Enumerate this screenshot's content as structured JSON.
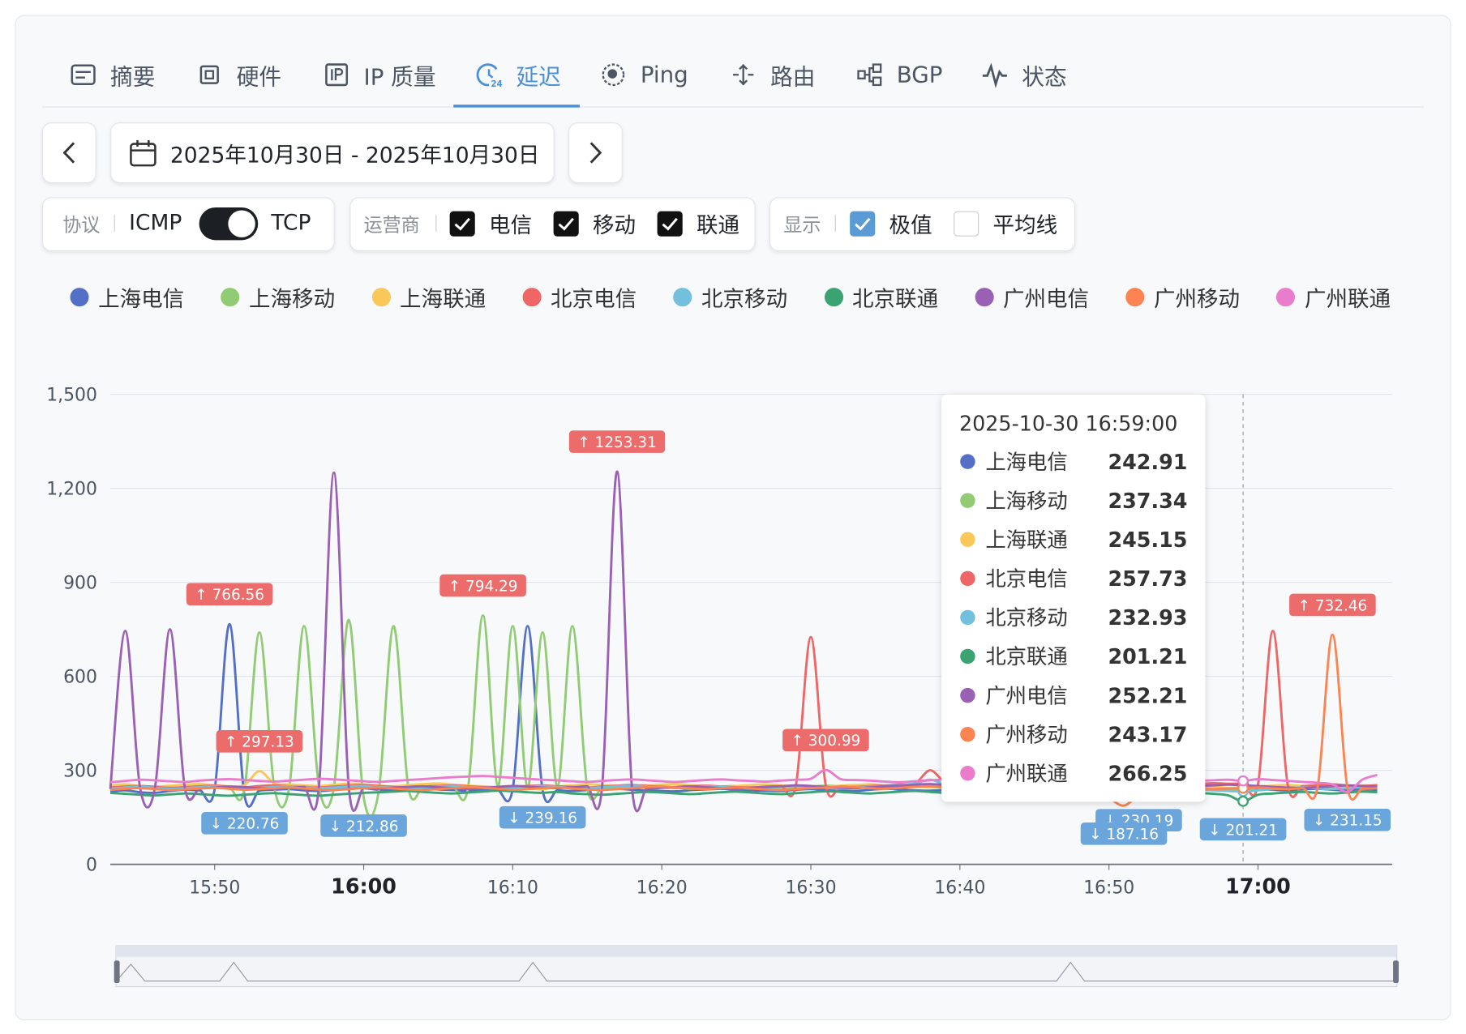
{
  "tabs": [
    {
      "label": "摘要",
      "active": false
    },
    {
      "label": "硬件",
      "active": false
    },
    {
      "label": "IP 质量",
      "active": false
    },
    {
      "label": "延迟",
      "active": true
    },
    {
      "label": "Ping",
      "active": false
    },
    {
      "label": "路由",
      "active": false
    },
    {
      "label": "BGP",
      "active": false
    },
    {
      "label": "状态",
      "active": false
    }
  ],
  "date_range": "2025年10月30日 - 2025年10月30日",
  "filters": {
    "protocol": {
      "label": "协议",
      "options": [
        "ICMP",
        "TCP"
      ],
      "toggle_on": true
    },
    "carrier": {
      "label": "运营商",
      "options": [
        {
          "label": "电信",
          "checked": true
        },
        {
          "label": "移动",
          "checked": true
        },
        {
          "label": "联通",
          "checked": true
        }
      ]
    },
    "display": {
      "label": "显示",
      "options": [
        {
          "label": "极值",
          "checked": true
        },
        {
          "label": "平均线",
          "checked": false
        }
      ]
    }
  },
  "chart_data": {
    "type": "line",
    "smooth": true,
    "x": [
      "15:43",
      "15:44",
      "15:45",
      "15:46",
      "15:47",
      "15:48",
      "15:49",
      "15:50",
      "15:51",
      "15:52",
      "15:53",
      "15:54",
      "15:55",
      "15:56",
      "15:57",
      "15:58",
      "15:59",
      "16:00",
      "16:01",
      "16:02",
      "16:03",
      "16:04",
      "16:05",
      "16:06",
      "16:07",
      "16:08",
      "16:09",
      "16:10",
      "16:11",
      "16:12",
      "16:13",
      "16:14",
      "16:15",
      "16:16",
      "16:17",
      "16:18",
      "16:19",
      "16:20",
      "16:21",
      "16:22",
      "16:23",
      "16:24",
      "16:25",
      "16:26",
      "16:27",
      "16:28",
      "16:29",
      "16:30",
      "16:31",
      "16:32",
      "16:33",
      "16:34",
      "16:35",
      "16:36",
      "16:37",
      "16:38",
      "16:39",
      "16:40",
      "16:41",
      "16:42",
      "16:43",
      "16:44",
      "16:45",
      "16:46",
      "16:47",
      "16:48",
      "16:49",
      "16:50",
      "16:51",
      "16:52",
      "16:53",
      "16:54",
      "16:55",
      "16:56",
      "16:57",
      "16:58",
      "16:59",
      "17:00",
      "17:01",
      "17:02",
      "17:03",
      "17:04",
      "17:05",
      "17:06",
      "17:07",
      "17:08"
    ],
    "xlim": [
      "15:43",
      "17:09"
    ],
    "xticks": [
      "15:50",
      "16:00",
      "16:10",
      "16:20",
      "16:30",
      "16:40",
      "16:50",
      "17:00"
    ],
    "ylim": [
      0,
      1500
    ],
    "yticks": [
      0,
      300,
      600,
      900,
      {
        "value": 1200,
        "label": "1,200"
      },
      {
        "value": 1500,
        "label": "1,500"
      }
    ],
    "grid": true,
    "series": [
      {
        "name": "上海电信",
        "color": "#5470c6",
        "max_label": "↑ 766.56",
        "min_label": "↓ 220.76",
        "values": [
          232,
          236,
          230,
          228,
          234,
          238,
          236,
          240,
          766.56,
          220.76,
          235,
          238,
          240,
          236,
          234,
          237,
          241,
          243,
          238,
          236,
          240,
          242,
          239,
          237,
          235,
          238,
          236,
          241,
          760,
          238,
          236,
          234,
          237,
          239,
          241,
          238,
          236,
          234,
          233,
          237,
          239,
          241,
          238,
          236,
          235,
          234,
          238,
          240,
          237,
          236,
          234,
          238,
          241,
          239,
          236,
          235,
          237,
          240,
          242,
          238,
          236,
          235,
          238,
          241,
          243,
          240,
          237,
          236,
          235,
          239,
          241,
          238,
          236,
          237,
          240,
          242,
          242.91,
          240,
          238,
          236,
          239,
          241,
          238,
          236,
          240,
          237
        ]
      },
      {
        "name": "上海移动",
        "color": "#91cc75",
        "max_label": "↑ 794.29",
        "min_label": "↓ 212.86",
        "values": [
          248,
          245,
          250,
          246,
          243,
          247,
          249,
          252,
          245,
          241,
          740,
          246,
          244,
          760,
          248,
          245,
          780,
          212.86,
          230,
          760,
          244,
          248,
          251,
          247,
          245,
          794.29,
          250,
          760,
          246,
          740,
          248,
          760,
          245,
          243,
          247,
          250,
          252,
          246,
          244,
          241,
          245,
          248,
          250,
          247,
          243,
          240,
          244,
          248,
          251,
          249,
          246,
          243,
          245,
          248,
          250,
          247,
          244,
          240,
          238,
          236,
          240,
          243,
          246,
          248,
          245,
          242,
          240,
          238,
          236,
          239,
          242,
          244,
          246,
          240,
          238,
          236,
          237.34,
          240,
          243,
          245,
          247,
          244,
          242,
          245,
          248,
          246
        ]
      },
      {
        "name": "上海联通",
        "color": "#fac858",
        "max_label": "↑ 297.13",
        "min_label": "↓ 239.16",
        "values": [
          252,
          255,
          250,
          248,
          251,
          254,
          256,
          252,
          249,
          253,
          297.13,
          258,
          255,
          252,
          250,
          254,
          257,
          255,
          251,
          249,
          253,
          256,
          258,
          254,
          251,
          249,
          247,
          250,
          245,
          239.16,
          248,
          252,
          255,
          253,
          250,
          248,
          251,
          254,
          256,
          252,
          249,
          247,
          250,
          253,
          255,
          252,
          249,
          247,
          248,
          251,
          253,
          255,
          252,
          250,
          248,
          246,
          249,
          252,
          254,
          251,
          248,
          246,
          248,
          251,
          253,
          250,
          247,
          245,
          248,
          250,
          252,
          249,
          247,
          246,
          248,
          244,
          245.15,
          248,
          251,
          253,
          250,
          248,
          247,
          250,
          252,
          249
        ]
      },
      {
        "name": "北京电信",
        "color": "#ee6666",
        "values": [
          245,
          248,
          250,
          247,
          244,
          246,
          249,
          251,
          248,
          246,
          250,
          252,
          249,
          247,
          245,
          248,
          251,
          253,
          250,
          247,
          245,
          248,
          250,
          252,
          249,
          246,
          244,
          247,
          250,
          252,
          249,
          247,
          245,
          248,
          251,
          253,
          250,
          248,
          246,
          249,
          251,
          248,
          246,
          245,
          248,
          250,
          253,
          725,
          252,
          249,
          247,
          250,
          252,
          255,
          258,
          300,
          262,
          259,
          256,
          258,
          255,
          252,
          250,
          253,
          256,
          254,
          251,
          249,
          252,
          255,
          258,
          255,
          253,
          256,
          259,
          257,
          257.73,
          255,
          745,
          252,
          250,
          253,
          255,
          252,
          250,
          253
        ]
      },
      {
        "name": "北京移动",
        "color": "#73c0de",
        "min_label": "↓ 230.19",
        "values": [
          242,
          245,
          248,
          244,
          241,
          243,
          246,
          249,
          245,
          242,
          244,
          247,
          249,
          246,
          243,
          245,
          248,
          250,
          247,
          244,
          242,
          245,
          248,
          250,
          247,
          244,
          242,
          245,
          248,
          250,
          247,
          244,
          243,
          246,
          249,
          251,
          248,
          245,
          243,
          246,
          249,
          247,
          244,
          242,
          245,
          248,
          250,
          247,
          244,
          242,
          245,
          248,
          250,
          253,
          258,
          270,
          255,
          250,
          247,
          245,
          248,
          250,
          247,
          244,
          242,
          240,
          238,
          236,
          234,
          230.19,
          236,
          239,
          241,
          238,
          236,
          234,
          232.93,
          236,
          240,
          243,
          245,
          242,
          240,
          243,
          246,
          244
        ]
      },
      {
        "name": "北京联通",
        "color": "#3ba272",
        "min_label": "↓ 201.21",
        "values": [
          228,
          225,
          222,
          220,
          223,
          226,
          224,
          221,
          219,
          222,
          225,
          227,
          224,
          221,
          219,
          222,
          225,
          228,
          230,
          232,
          234,
          231,
          228,
          226,
          229,
          232,
          235,
          233,
          230,
          228,
          231,
          226,
          224,
          222,
          225,
          228,
          231,
          229,
          226,
          224,
          227,
          230,
          232,
          229,
          226,
          224,
          227,
          230,
          233,
          231,
          228,
          226,
          229,
          232,
          234,
          231,
          228,
          226,
          224,
          227,
          230,
          232,
          229,
          227,
          225,
          228,
          231,
          233,
          230,
          228,
          226,
          229,
          231,
          228,
          225,
          220,
          201.21,
          222,
          226,
          229,
          231,
          228,
          226,
          229,
          232,
          230
        ]
      },
      {
        "name": "广州电信",
        "color": "#9a60b4",
        "max_label": "↑ 1253.31",
        "values": [
          240,
          745,
          243,
          246,
          750,
          244,
          242,
          245,
          248,
          246,
          243,
          241,
          244,
          247,
          249,
          1250,
          246,
          243,
          241,
          244,
          247,
          249,
          246,
          243,
          241,
          244,
          247,
          250,
          248,
          245,
          243,
          246,
          249,
          251,
          1253.31,
          245,
          242,
          244,
          247,
          249,
          246,
          243,
          241,
          244,
          247,
          249,
          252,
          250,
          247,
          245,
          243,
          246,
          249,
          251,
          254,
          256,
          253,
          250,
          248,
          246,
          249,
          252,
          250,
          247,
          245,
          243,
          246,
          249,
          251,
          248,
          246,
          244,
          247,
          250,
          252,
          254,
          252.21,
          250,
          247,
          245,
          243,
          246,
          249,
          252,
          250,
          248
        ]
      },
      {
        "name": "广州移动",
        "color": "#fc8452",
        "max_label": "↑ 732.46",
        "min_label": "↓ 187.16",
        "values": [
          238,
          241,
          243,
          240,
          237,
          239,
          242,
          244,
          241,
          238,
          240,
          243,
          245,
          242,
          239,
          237,
          240,
          243,
          245,
          242,
          239,
          237,
          240,
          243,
          246,
          244,
          241,
          238,
          240,
          243,
          245,
          242,
          239,
          237,
          240,
          243,
          246,
          248,
          245,
          242,
          240,
          243,
          245,
          242,
          239,
          237,
          240,
          243,
          245,
          248,
          246,
          243,
          241,
          244,
          247,
          249,
          246,
          243,
          241,
          238,
          236,
          234,
          232,
          230,
          228,
          226,
          222,
          210,
          187.16,
          220,
          232,
          238,
          241,
          243,
          240,
          242,
          243.17,
          245,
          242,
          240,
          243,
          246,
          732.46,
          244,
          241,
          243
        ]
      },
      {
        "name": "广州联通",
        "color": "#ea7ccc",
        "max_label": "↑ 300.99",
        "min_label": "↓ 231.15",
        "values": [
          262,
          266,
          270,
          268,
          265,
          263,
          267,
          270,
          272,
          269,
          266,
          264,
          267,
          270,
          273,
          271,
          268,
          265,
          263,
          266,
          269,
          272,
          275,
          278,
          280,
          282,
          279,
          276,
          273,
          270,
          268,
          265,
          263,
          266,
          269,
          271,
          268,
          265,
          263,
          266,
          269,
          271,
          268,
          266,
          264,
          267,
          270,
          273,
          300.99,
          272,
          269,
          267,
          264,
          262,
          265,
          268,
          270,
          267,
          264,
          262,
          265,
          268,
          271,
          269,
          266,
          264,
          262,
          265,
          268,
          270,
          267,
          265,
          263,
          266,
          268,
          270,
          266.25,
          272,
          269,
          266,
          263,
          260,
          255,
          231.15,
          270,
          285
        ]
      }
    ],
    "tooltip": {
      "title": "2025-10-30 16:59:00",
      "x": "16:59"
    }
  }
}
